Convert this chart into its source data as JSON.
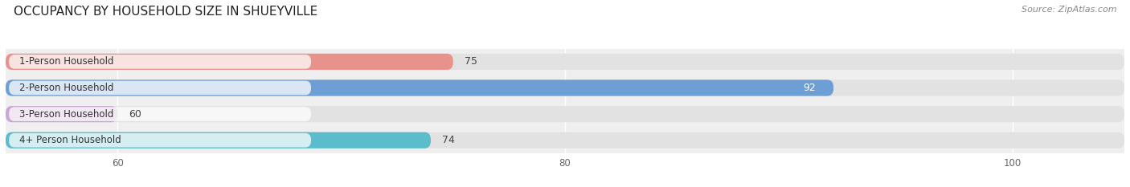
{
  "title": "OCCUPANCY BY HOUSEHOLD SIZE IN SHUEYVILLE",
  "source": "Source: ZipAtlas.com",
  "categories": [
    "1-Person Household",
    "2-Person Household",
    "3-Person Household",
    "4+ Person Household"
  ],
  "values": [
    75,
    92,
    60,
    74
  ],
  "bar_colors": [
    "#e8928c",
    "#6e9fd4",
    "#c9a8d4",
    "#5bbccc"
  ],
  "label_colors": [
    "#444444",
    "#ffffff",
    "#444444",
    "#444444"
  ],
  "xlim": [
    55,
    105
  ],
  "xticks": [
    60,
    80,
    100
  ],
  "bg_color": "#efefef",
  "bar_bg_color": "#e2e2e2",
  "title_fontsize": 11,
  "source_fontsize": 8,
  "bar_label_fontsize": 9,
  "category_fontsize": 8.5,
  "bar_height": 0.62,
  "figure_width": 14.06,
  "figure_height": 2.33,
  "white_bg": "#ffffff"
}
